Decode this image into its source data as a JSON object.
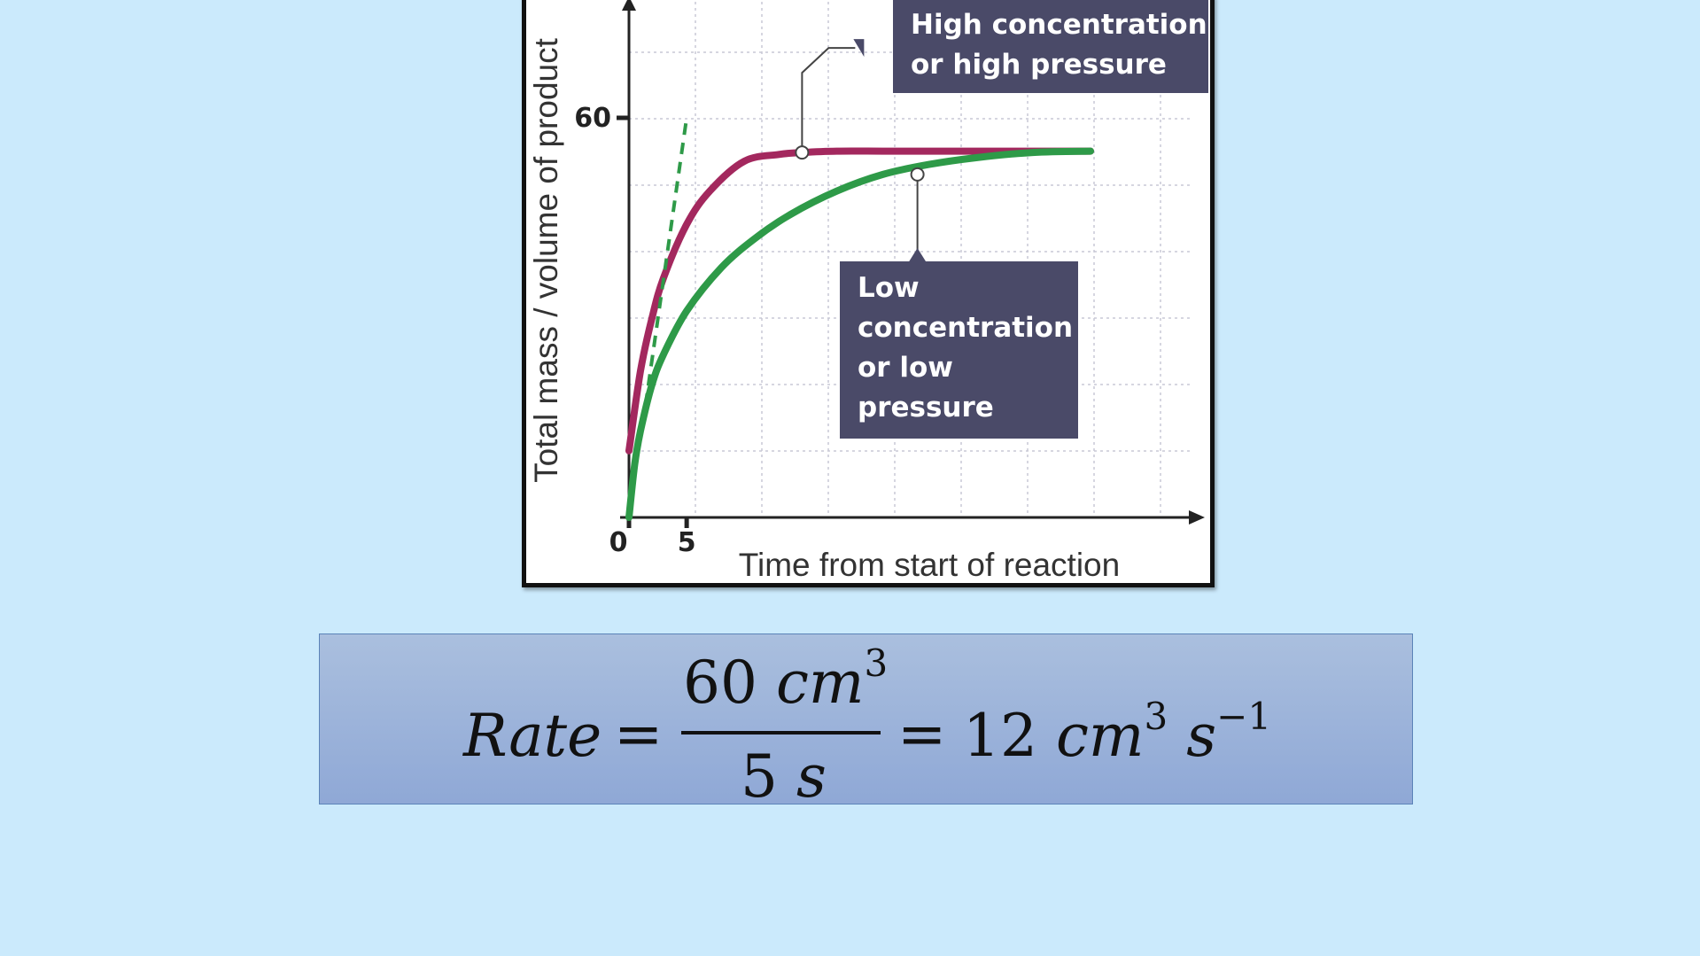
{
  "chart_data": {
    "type": "line",
    "ylabel": "Total mass / volume of product",
    "xlabel": "Time from start of reaction",
    "x_ticks": [
      0,
      5
    ],
    "y_ticks": [
      60
    ],
    "xlim": [
      0,
      40
    ],
    "ylim": [
      0,
      60
    ],
    "grid": true,
    "series": [
      {
        "color": "#a3285e",
        "x": [
          0,
          1,
          2,
          3,
          5,
          7,
          10,
          13,
          15,
          18,
          22,
          26,
          30,
          35,
          40
        ],
        "y": [
          10,
          22,
          30,
          36,
          44,
          49,
          53.5,
          54.5,
          54.8,
          55,
          55,
          55,
          55,
          55,
          55
        ]
      },
      {
        "color": "#2e9a48",
        "x": [
          0,
          0.5,
          1,
          2,
          3,
          5,
          8,
          11,
          14,
          18,
          22,
          26,
          30,
          35,
          40
        ],
        "y": [
          0,
          8,
          13,
          20,
          24.5,
          31,
          37.5,
          42,
          45.5,
          49,
          51.5,
          53,
          54,
          54.8,
          55
        ]
      },
      {
        "color": "#2e9a48",
        "style": "dashed",
        "x": [
          1.2,
          5
        ],
        "y": [
          14,
          60
        ]
      }
    ],
    "annotations": [
      {
        "text_lines": [
          "High concentration",
          "or high pressure"
        ],
        "x": 15,
        "y": 54.8
      },
      {
        "text_lines": [
          "Low",
          "concentration",
          "or low",
          "pressure"
        ],
        "x": 25,
        "y": 51.5
      }
    ]
  },
  "formula": {
    "lhs": "Rate",
    "eq1": "=",
    "numerator_value": "60",
    "numerator_unit": "cm",
    "numerator_exp": "3",
    "denominator_value": "5",
    "denominator_unit": "s",
    "eq2": "=",
    "result_value": "12",
    "result_unit1": "cm",
    "result_exp1": "3",
    "result_unit2": "s",
    "result_exp2": "−1"
  }
}
